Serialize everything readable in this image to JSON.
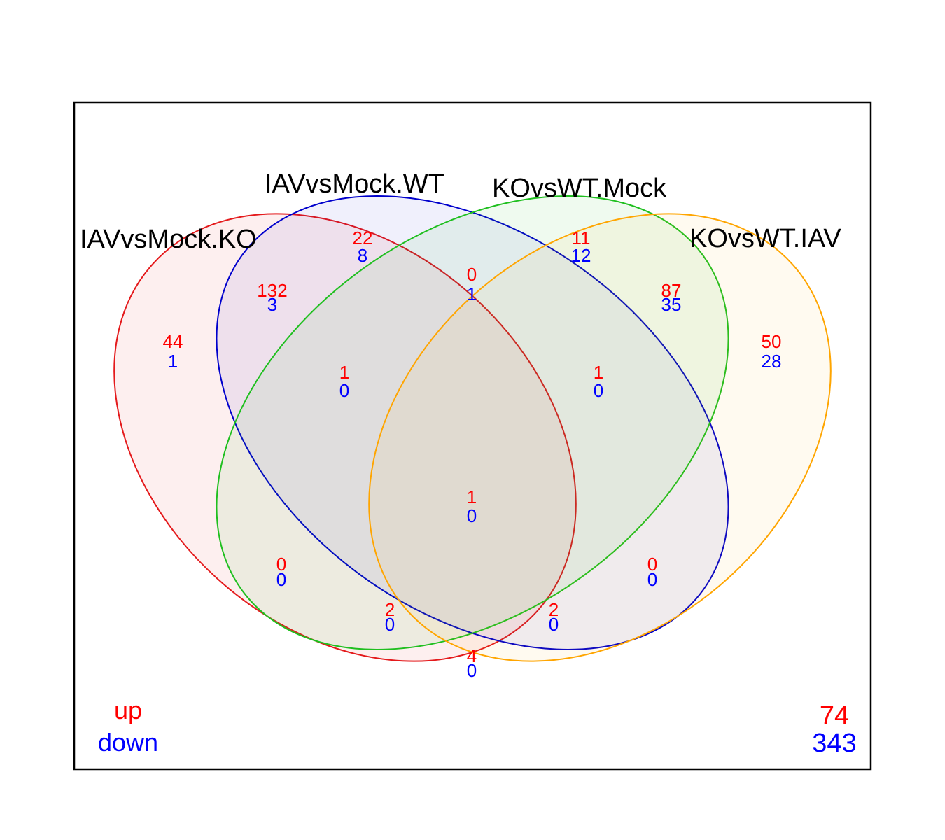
{
  "colors": {
    "up": "#ff0000",
    "down": "#0000ff",
    "frame": "#000000"
  },
  "sets": [
    {
      "name": "IAVvsMock.KO",
      "color": "#e41a1c"
    },
    {
      "name": "IAVvsMock.WT",
      "color": "#0000cc"
    },
    {
      "name": "KOvsWT.Mock",
      "color": "#1fbf1f"
    },
    {
      "name": "KOvsWT.IAV",
      "color": "#ffa500"
    }
  ],
  "regions": [
    {
      "sets": [
        "IAVvsMock.KO"
      ],
      "up": "44",
      "down": "1"
    },
    {
      "sets": [
        "IAVvsMock.WT"
      ],
      "up": "22",
      "down": "8"
    },
    {
      "sets": [
        "KOvsWT.Mock"
      ],
      "up": "11",
      "down": "12"
    },
    {
      "sets": [
        "KOvsWT.IAV"
      ],
      "up": "50",
      "down": "28"
    },
    {
      "sets": [
        "IAVvsMock.KO",
        "IAVvsMock.WT"
      ],
      "up": "132",
      "down": "3"
    },
    {
      "sets": [
        "IAVvsMock.WT",
        "KOvsWT.Mock"
      ],
      "up": "0",
      "down": "1"
    },
    {
      "sets": [
        "KOvsWT.Mock",
        "KOvsWT.IAV"
      ],
      "up": "87",
      "down": "35"
    },
    {
      "sets": [
        "IAVvsMock.KO",
        "IAVvsMock.WT",
        "KOvsWT.Mock"
      ],
      "up": "1",
      "down": "0"
    },
    {
      "sets": [
        "IAVvsMock.WT",
        "KOvsWT.Mock",
        "KOvsWT.IAV"
      ],
      "up": "1",
      "down": "0"
    },
    {
      "sets": [
        "IAVvsMock.KO",
        "IAVvsMock.WT",
        "KOvsWT.Mock",
        "KOvsWT.IAV"
      ],
      "up": "1",
      "down": "0"
    },
    {
      "sets": [
        "IAVvsMock.KO",
        "KOvsWT.Mock"
      ],
      "up": "0",
      "down": "0"
    },
    {
      "sets": [
        "IAVvsMock.WT",
        "KOvsWT.IAV"
      ],
      "up": "0",
      "down": "0"
    },
    {
      "sets": [
        "IAVvsMock.KO",
        "KOvsWT.Mock",
        "KOvsWT.IAV"
      ],
      "up": "2",
      "down": "0"
    },
    {
      "sets": [
        "IAVvsMock.KO",
        "IAVvsMock.WT",
        "KOvsWT.IAV"
      ],
      "up": "2",
      "down": "0"
    },
    {
      "sets": [
        "IAVvsMock.KO",
        "KOvsWT.IAV"
      ],
      "up": "4",
      "down": "0"
    }
  ],
  "legend": {
    "up": "up",
    "down": "down"
  },
  "outside": {
    "up": "74",
    "down": "343"
  }
}
